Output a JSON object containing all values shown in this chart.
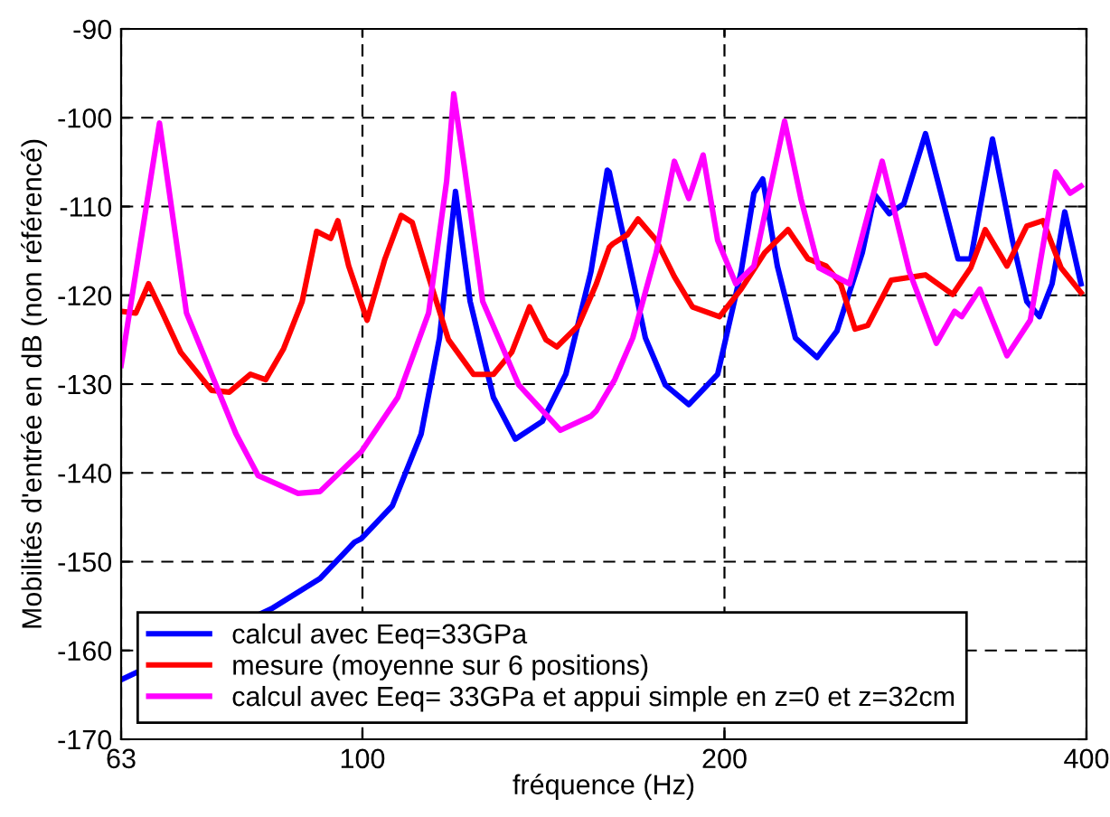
{
  "chart_data": {
    "type": "line",
    "xlabel": "fréquence (Hz)",
    "ylabel": "Mobilités d'entrée en dB (non référencé)",
    "log": "x",
    "xlim": [
      63,
      400
    ],
    "xticks": [
      63,
      100,
      200,
      400
    ],
    "ylim": [
      -170,
      -90
    ],
    "yticks": [
      -170,
      -160,
      -150,
      -140,
      -130,
      -120,
      -110,
      -100,
      -90
    ],
    "grid": true,
    "legend": "bottom left",
    "line_style": "solid",
    "series": [
      {
        "name": "calcul avec Eeq=33GPa",
        "color": "#0000ff",
        "x": [
          63,
          84.0,
          92.2,
          98.5,
          99.8,
          105.9,
          111.9,
          115.9,
          119.5,
          122.9,
          128.5,
          134.0,
          141.1,
          147.6,
          154.9,
          159.8,
          160.4,
          166.0,
          171.9,
          178.6,
          186.8,
          197.4,
          206.5,
          211.6,
          215.2,
          221.3,
          229.1,
          238.8,
          248.1,
          260.4,
          266.7,
          274.2,
          281.9,
          293.9,
          304.3,
          312.8,
          320.5,
          334.1,
          347.1,
          356.8,
          365.5,
          374.5,
          383.7,
          395.8
        ],
        "values": [
          -163.3,
          -155.3,
          -151.9,
          -147.8,
          -147.4,
          -143.7,
          -135.6,
          -124.8,
          -108.3,
          -120.7,
          -131.5,
          -136.2,
          -134.2,
          -128.9,
          -117.3,
          -105.9,
          -106.1,
          -115.2,
          -124.8,
          -130.1,
          -132.3,
          -128.9,
          -117.3,
          -108.5,
          -106.9,
          -116.7,
          -124.8,
          -127.0,
          -124.0,
          -115.2,
          -108.7,
          -110.8,
          -109.7,
          -101.8,
          -109.7,
          -115.9,
          -115.9,
          -102.4,
          -113.8,
          -120.7,
          -122.4,
          -118.7,
          -110.6,
          -118.7
        ]
      },
      {
        "name": "mesure (moyenne sur 6 positions)",
        "color": "#ff0000",
        "x": [
          63,
          64.8,
          66.4,
          68.2,
          70.6,
          74.9,
          77.5,
          80.7,
          83.1,
          86.0,
          89.1,
          91.6,
          94.1,
          95.4,
          97.4,
          100.9,
          104.4,
          107.7,
          110.0,
          113.5,
          117.9,
          123.7,
          128.5,
          133.1,
          137.7,
          142.1,
          145.1,
          151.2,
          156.5,
          160.4,
          161.5,
          166.0,
          169.5,
          175.5,
          181.7,
          188.1,
          198.1,
          206.5,
          216.0,
          225.9,
          234.7,
          243.0,
          249.8,
          256.8,
          263.1,
          275.2,
          293.9,
          309.6,
          320.5,
          329.5,
          343.5,
          356.8,
          368.0,
          381.0,
          395.8
        ],
        "values": [
          -121.8,
          -122.0,
          -118.7,
          -122.0,
          -126.4,
          -130.7,
          -130.9,
          -128.9,
          -129.5,
          -126.0,
          -120.7,
          -112.8,
          -113.6,
          -111.6,
          -116.7,
          -122.8,
          -115.9,
          -111.0,
          -111.8,
          -117.9,
          -125.0,
          -128.9,
          -128.9,
          -126.4,
          -121.3,
          -125.0,
          -125.8,
          -123.4,
          -118.7,
          -114.6,
          -114.2,
          -113.2,
          -111.4,
          -113.8,
          -117.9,
          -121.3,
          -122.4,
          -119.3,
          -115.2,
          -112.6,
          -115.9,
          -116.7,
          -118.7,
          -123.8,
          -123.4,
          -118.3,
          -117.7,
          -119.9,
          -116.9,
          -112.6,
          -116.7,
          -112.2,
          -111.6,
          -116.9,
          -119.7
        ]
      },
      {
        "name": "calcul avec Eeq= 33GPa et appui simple en z=0 et z=32cm",
        "color": "#ff00ff",
        "x": [
          63,
          67.8,
          71.4,
          78.5,
          81.9,
          88.4,
          92.2,
          99.8,
          107.0,
          113.5,
          117.5,
          119.1,
          121.6,
          125.9,
          134.9,
          146.1,
          154.9,
          156.5,
          162.1,
          167.8,
          175.5,
          181.7,
          186.8,
          192.0,
          197.4,
          204.4,
          211.6,
          219.0,
          224.4,
          231.5,
          239.6,
          254.1,
          270.5,
          284.9,
          300.1,
          310.7,
          315.0,
          326.1,
          343.5,
          359.2,
          377.1,
          387.7,
          395.8
        ],
        "values": [
          -127.9,
          -100.6,
          -122.0,
          -135.6,
          -140.3,
          -142.3,
          -142.1,
          -137.6,
          -131.5,
          -122.0,
          -107.1,
          -97.3,
          -105.7,
          -120.7,
          -130.1,
          -135.2,
          -133.6,
          -133.0,
          -129.5,
          -124.8,
          -115.2,
          -104.9,
          -109.1,
          -104.2,
          -113.8,
          -118.7,
          -116.7,
          -107.1,
          -100.4,
          -109.1,
          -116.9,
          -118.7,
          -104.9,
          -117.3,
          -125.4,
          -121.8,
          -122.4,
          -119.3,
          -126.8,
          -122.8,
          -106.1,
          -108.5,
          -107.7
        ]
      }
    ]
  }
}
